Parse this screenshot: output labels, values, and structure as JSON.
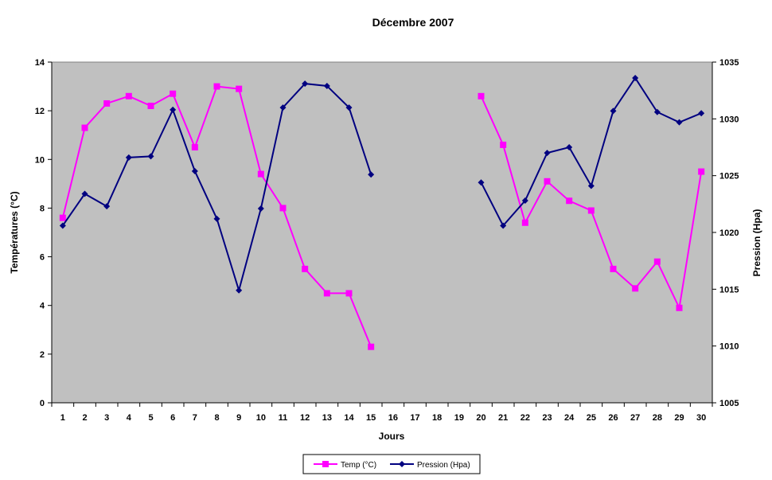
{
  "chart_data": {
    "type": "line",
    "title": "Décembre 2007",
    "xlabel": "Jours",
    "ylabel": "Températures (°C)",
    "y2label": "Pression (Hpa)",
    "categories": [
      "1",
      "2",
      "3",
      "4",
      "5",
      "6",
      "7",
      "8",
      "9",
      "10",
      "11",
      "12",
      "13",
      "14",
      "15",
      "16",
      "17",
      "18",
      "19",
      "20",
      "21",
      "22",
      "23",
      "24",
      "25",
      "26",
      "27",
      "28",
      "29",
      "30"
    ],
    "ylim": [
      0,
      14
    ],
    "yticks": [
      "0",
      "2",
      "4",
      "6",
      "8",
      "10",
      "12",
      "14"
    ],
    "y2lim": [
      1005,
      1035
    ],
    "y2ticks": [
      "1005",
      "1010",
      "1015",
      "1020",
      "1025",
      "1030",
      "1035"
    ],
    "grid": false,
    "legend_position": "bottom",
    "series": [
      {
        "name": "Temp (°C)",
        "axis": "left",
        "color": "#ff00ff",
        "marker": "square",
        "values": [
          7.6,
          11.3,
          12.3,
          12.6,
          12.2,
          12.7,
          10.5,
          13.0,
          12.9,
          9.4,
          8.0,
          5.5,
          4.5,
          4.5,
          2.3,
          null,
          null,
          null,
          null,
          12.6,
          10.6,
          7.4,
          9.1,
          8.3,
          7.9,
          5.5,
          4.7,
          5.8,
          3.9,
          9.5
        ]
      },
      {
        "name": "Pression (Hpa)",
        "axis": "right",
        "color": "#000080",
        "marker": "diamond",
        "values": [
          1020.6,
          1023.4,
          1022.3,
          1026.6,
          1026.7,
          1030.8,
          1025.4,
          1021.2,
          1014.9,
          1022.1,
          1031.0,
          1033.1,
          1032.9,
          1031.0,
          1025.1,
          null,
          null,
          null,
          null,
          1024.4,
          1020.6,
          1022.8,
          1027.0,
          1027.5,
          1024.1,
          1030.7,
          1033.6,
          1030.6,
          1029.7,
          1030.5
        ]
      }
    ]
  }
}
